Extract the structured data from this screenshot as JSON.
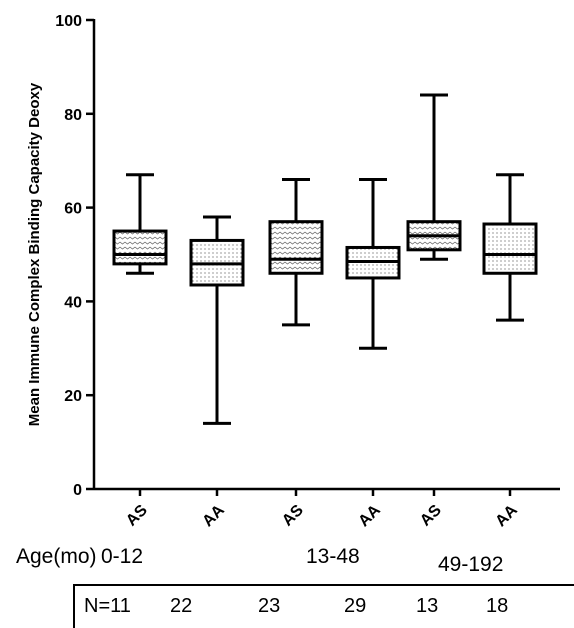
{
  "chart_data": {
    "type": "box",
    "ylabel": "Mean Immune Complex Binding Capacity Deoxy",
    "ylim": [
      0,
      100
    ],
    "yticks": [
      0,
      20,
      40,
      60,
      80,
      100
    ],
    "categories": [
      "AS",
      "AA",
      "AS",
      "AA",
      "AS",
      "AA"
    ],
    "boxes": [
      {
        "label": "AS",
        "age_group": "0-12",
        "min": 46,
        "q1": 48,
        "median": 50,
        "q3": 55,
        "max": 67
      },
      {
        "label": "AA",
        "age_group": "0-12",
        "min": 14,
        "q1": 43.5,
        "median": 48,
        "q3": 53,
        "max": 58
      },
      {
        "label": "AS",
        "age_group": "13-48",
        "min": 35,
        "q1": 46,
        "median": 49,
        "q3": 57,
        "max": 66
      },
      {
        "label": "AA",
        "age_group": "13-48",
        "min": 30,
        "q1": 45,
        "median": 48.5,
        "q3": 51.5,
        "max": 66
      },
      {
        "label": "AS",
        "age_group": "49-192",
        "min": 49,
        "q1": 51,
        "median": 54,
        "q3": 57,
        "max": 84
      },
      {
        "label": "AA",
        "age_group": "49-192",
        "min": 36,
        "q1": 46,
        "median": 50,
        "q3": 56.5,
        "max": 67
      }
    ],
    "grid": false
  },
  "age_axis": {
    "label": "Age(mo)",
    "groups": [
      "0-12",
      "13-48",
      "49-192"
    ]
  },
  "n_row": {
    "values": [
      "N=11",
      "22",
      "23",
      "29",
      "13",
      "18"
    ]
  }
}
